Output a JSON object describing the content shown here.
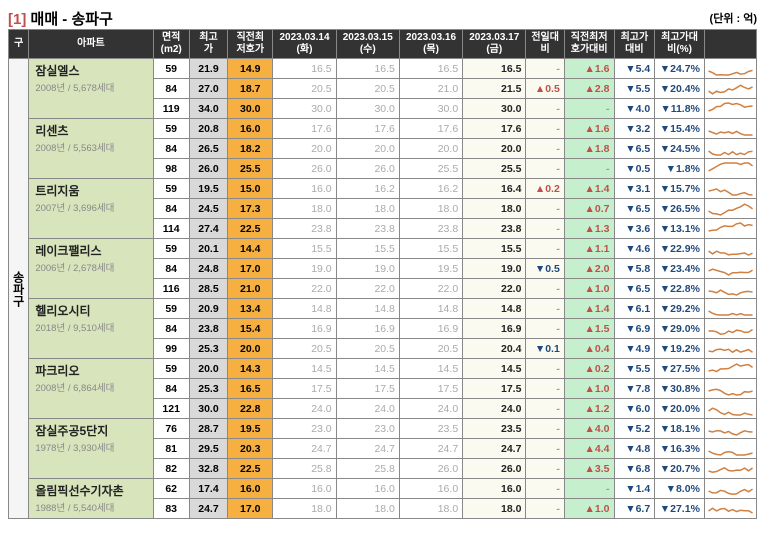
{
  "title_num": "[1]",
  "title_text": "매매 - 송파구",
  "unit": "(단위 : 억)",
  "district": "송파구",
  "headers": {
    "gu": "구",
    "apt": "아파트",
    "area": "면적\n(m2)",
    "high": "최고\n가",
    "prev": "직전최\n저호가",
    "d1": "2023.03.14\n(화)",
    "d2": "2023.03.15\n(수)",
    "d3": "2023.03.16\n(목)",
    "d4": "2023.03.17\n(금)",
    "dd": "전일대\n비",
    "gap1": "직전최저\n호가대비",
    "gap2": "최고가\n대비",
    "pct": "최고가대\n비(%)"
  },
  "colors": {
    "red": "#c0504d",
    "blue": "#1f497d",
    "spark": "#d08040"
  },
  "apts": [
    {
      "name": "잠실엘스",
      "meta": "2008년 / 5,678세대",
      "rows": [
        {
          "area": "59",
          "high": "21.9",
          "prev": "14.9",
          "d1": "16.5",
          "d2": "16.5",
          "d3": "16.5",
          "d4": "16.5",
          "dd": "-",
          "g1": "▲1.6",
          "g2": "▼5.4",
          "pct": "▼24.7%"
        },
        {
          "area": "84",
          "high": "27.0",
          "prev": "18.7",
          "d1": "20.5",
          "d2": "20.5",
          "d3": "21.0",
          "d4": "21.5",
          "dd": "▲0.5",
          "g1": "▲2.8",
          "g2": "▼5.5",
          "pct": "▼20.4%"
        },
        {
          "area": "119",
          "high": "34.0",
          "prev": "30.0",
          "d1": "30.0",
          "d2": "30.0",
          "d3": "30.0",
          "d4": "30.0",
          "dd": "-",
          "g1": "-",
          "g2": "▼4.0",
          "pct": "▼11.8%"
        }
      ]
    },
    {
      "name": "리센츠",
      "meta": "2008년 / 5,563세대",
      "rows": [
        {
          "area": "59",
          "high": "20.8",
          "prev": "16.0",
          "d1": "17.6",
          "d2": "17.6",
          "d3": "17.6",
          "d4": "17.6",
          "dd": "-",
          "g1": "▲1.6",
          "g2": "▼3.2",
          "pct": "▼15.4%"
        },
        {
          "area": "84",
          "high": "26.5",
          "prev": "18.2",
          "d1": "20.0",
          "d2": "20.0",
          "d3": "20.0",
          "d4": "20.0",
          "dd": "-",
          "g1": "▲1.8",
          "g2": "▼6.5",
          "pct": "▼24.5%"
        },
        {
          "area": "98",
          "high": "26.0",
          "prev": "25.5",
          "d1": "26.0",
          "d2": "26.0",
          "d3": "25.5",
          "d4": "25.5",
          "dd": "-",
          "g1": "-",
          "g2": "▼0.5",
          "pct": "▼1.8%"
        }
      ]
    },
    {
      "name": "트리지움",
      "meta": "2007년 / 3,696세대",
      "rows": [
        {
          "area": "59",
          "high": "19.5",
          "prev": "15.0",
          "d1": "16.0",
          "d2": "16.2",
          "d3": "16.2",
          "d4": "16.4",
          "dd": "▲0.2",
          "g1": "▲1.4",
          "g2": "▼3.1",
          "pct": "▼15.7%"
        },
        {
          "area": "84",
          "high": "24.5",
          "prev": "17.3",
          "d1": "18.0",
          "d2": "18.0",
          "d3": "18.0",
          "d4": "18.0",
          "dd": "-",
          "g1": "▲0.7",
          "g2": "▼6.5",
          "pct": "▼26.5%"
        },
        {
          "area": "114",
          "high": "27.4",
          "prev": "22.5",
          "d1": "23.8",
          "d2": "23.8",
          "d3": "23.8",
          "d4": "23.8",
          "dd": "-",
          "g1": "▲1.3",
          "g2": "▼3.6",
          "pct": "▼13.1%"
        }
      ]
    },
    {
      "name": "레이크팰리스",
      "meta": "2006년 / 2,678세대",
      "rows": [
        {
          "area": "59",
          "high": "20.1",
          "prev": "14.4",
          "d1": "15.5",
          "d2": "15.5",
          "d3": "15.5",
          "d4": "15.5",
          "dd": "-",
          "g1": "▲1.1",
          "g2": "▼4.6",
          "pct": "▼22.9%"
        },
        {
          "area": "84",
          "high": "24.8",
          "prev": "17.0",
          "d1": "19.0",
          "d2": "19.0",
          "d3": "19.5",
          "d4": "19.0",
          "dd": "▼0.5",
          "g1": "▲2.0",
          "g2": "▼5.8",
          "pct": "▼23.4%"
        },
        {
          "area": "116",
          "high": "28.5",
          "prev": "21.0",
          "d1": "22.0",
          "d2": "22.0",
          "d3": "22.0",
          "d4": "22.0",
          "dd": "-",
          "g1": "▲1.0",
          "g2": "▼6.5",
          "pct": "▼22.8%"
        }
      ]
    },
    {
      "name": "헬리오시티",
      "meta": "2018년 / 9,510세대",
      "rows": [
        {
          "area": "59",
          "high": "20.9",
          "prev": "13.4",
          "d1": "14.8",
          "d2": "14.8",
          "d3": "14.8",
          "d4": "14.8",
          "dd": "-",
          "g1": "▲1.4",
          "g2": "▼6.1",
          "pct": "▼29.2%"
        },
        {
          "area": "84",
          "high": "23.8",
          "prev": "15.4",
          "d1": "16.9",
          "d2": "16.9",
          "d3": "16.9",
          "d4": "16.9",
          "dd": "-",
          "g1": "▲1.5",
          "g2": "▼6.9",
          "pct": "▼29.0%"
        },
        {
          "area": "99",
          "high": "25.3",
          "prev": "20.0",
          "d1": "20.5",
          "d2": "20.5",
          "d3": "20.5",
          "d4": "20.4",
          "dd": "▼0.1",
          "g1": "▲0.4",
          "g2": "▼4.9",
          "pct": "▼19.2%"
        }
      ]
    },
    {
      "name": "파크리오",
      "meta": "2008년 / 6,864세대",
      "rows": [
        {
          "area": "59",
          "high": "20.0",
          "prev": "14.3",
          "d1": "14.5",
          "d2": "14.5",
          "d3": "14.5",
          "d4": "14.5",
          "dd": "-",
          "g1": "▲0.2",
          "g2": "▼5.5",
          "pct": "▼27.5%"
        },
        {
          "area": "84",
          "high": "25.3",
          "prev": "16.5",
          "d1": "17.5",
          "d2": "17.5",
          "d3": "17.5",
          "d4": "17.5",
          "dd": "-",
          "g1": "▲1.0",
          "g2": "▼7.8",
          "pct": "▼30.8%"
        },
        {
          "area": "121",
          "high": "30.0",
          "prev": "22.8",
          "d1": "24.0",
          "d2": "24.0",
          "d3": "24.0",
          "d4": "24.0",
          "dd": "-",
          "g1": "▲1.2",
          "g2": "▼6.0",
          "pct": "▼20.0%"
        }
      ]
    },
    {
      "name": "잠실주공5단지",
      "meta": "1978년 / 3,930세대",
      "rows": [
        {
          "area": "76",
          "high": "28.7",
          "prev": "19.5",
          "d1": "23.0",
          "d2": "23.0",
          "d3": "23.5",
          "d4": "23.5",
          "dd": "-",
          "g1": "▲4.0",
          "g2": "▼5.2",
          "pct": "▼18.1%"
        },
        {
          "area": "81",
          "high": "29.5",
          "prev": "20.3",
          "d1": "24.7",
          "d2": "24.7",
          "d3": "24.7",
          "d4": "24.7",
          "dd": "-",
          "g1": "▲4.4",
          "g2": "▼4.8",
          "pct": "▼16.3%"
        },
        {
          "area": "82",
          "high": "32.8",
          "prev": "22.5",
          "d1": "25.8",
          "d2": "25.8",
          "d3": "26.0",
          "d4": "26.0",
          "dd": "-",
          "g1": "▲3.5",
          "g2": "▼6.8",
          "pct": "▼20.7%"
        }
      ]
    },
    {
      "name": "올림픽선수기자촌",
      "meta": "1988년 / 5,540세대",
      "rows": [
        {
          "area": "62",
          "high": "17.4",
          "prev": "16.0",
          "d1": "16.0",
          "d2": "16.0",
          "d3": "16.0",
          "d4": "16.0",
          "dd": "-",
          "g1": "-",
          "g2": "▼1.4",
          "pct": "▼8.0%"
        },
        {
          "area": "83",
          "high": "24.7",
          "prev": "17.0",
          "d1": "18.0",
          "d2": "18.0",
          "d3": "18.0",
          "d4": "18.0",
          "dd": "-",
          "g1": "▲1.0",
          "g2": "▼6.7",
          "pct": "▼27.1%"
        }
      ]
    }
  ]
}
